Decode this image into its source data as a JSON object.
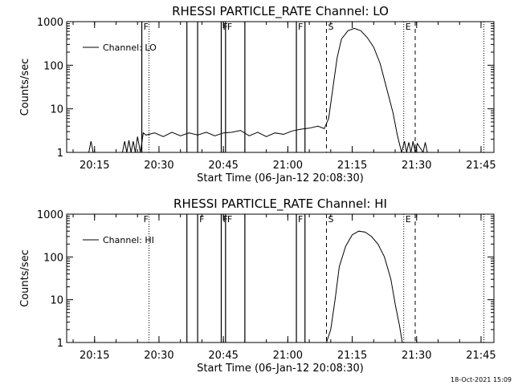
{
  "chart_data": [
    {
      "type": "line",
      "title": "RHESSI PARTICLE_RATE Channel: LO",
      "xlabel": "Start Time (06-Jan-12 20:08:30)",
      "ylabel": "Counts/sec",
      "yscale": "log",
      "ylim": [
        1,
        1000
      ],
      "xlim": [
        "20:08:30",
        "21:48:00"
      ],
      "x_ticks": [
        "20:15",
        "20:30",
        "20:45",
        "21:00",
        "21:15",
        "21:30",
        "21:45"
      ],
      "y_ticks": [
        "1",
        "10",
        "100",
        "1000"
      ],
      "legend": "top-left",
      "series": [
        {
          "name": "Channel: LO",
          "x": [
            "20:08:30",
            "20:13:40",
            "20:14:10",
            "20:14:40",
            "20:21:30",
            "20:22:00",
            "20:22:30",
            "20:23:00",
            "20:23:30",
            "20:24:00",
            "20:24:30",
            "20:25:00",
            "20:25:40",
            "20:26:20",
            "20:27:00",
            "20:29:00",
            "20:31:00",
            "20:33:00",
            "20:35:00",
            "20:37:00",
            "20:39:00",
            "20:41:00",
            "20:43:00",
            "20:45:00",
            "20:47:00",
            "20:49:00",
            "20:51:00",
            "20:53:00",
            "20:55:00",
            "20:57:00",
            "20:59:00",
            "21:01:00",
            "21:03:00",
            "21:05:00",
            "21:07:00",
            "21:08:30",
            "21:09:30",
            "21:10:30",
            "21:11:30",
            "21:12:30",
            "21:14:00",
            "21:15:30",
            "21:17:00",
            "21:18:30",
            "21:20:00",
            "21:21:30",
            "21:23:00",
            "21:24:30",
            "21:25:30",
            "21:26:30",
            "21:27:10",
            "21:27:40",
            "21:28:10",
            "21:28:40",
            "21:29:10",
            "21:29:40",
            "21:30:10",
            "21:31:30",
            "21:32:00",
            "21:32:30",
            "21:33:00",
            "21:48:00"
          ],
          "y": [
            1,
            1,
            1.8,
            1,
            1,
            1.8,
            1,
            1.9,
            1,
            1.8,
            1,
            2.3,
            1,
            2.8,
            2.5,
            2.8,
            2.3,
            2.9,
            2.4,
            2.8,
            2.5,
            2.9,
            2.4,
            2.8,
            2.9,
            3.2,
            2.4,
            2.9,
            2.3,
            2.8,
            2.6,
            3.1,
            3.4,
            3.6,
            4.0,
            3.5,
            6,
            30,
            150,
            400,
            620,
            700,
            620,
            430,
            260,
            110,
            30,
            8,
            2.5,
            1,
            1.8,
            1,
            1.7,
            1,
            1.8,
            1,
            1.6,
            1,
            1.7,
            1,
            1,
            1
          ]
        }
      ],
      "vlines_solid": [
        "20:26:00",
        "20:36:30",
        "20:39:00",
        "20:44:30",
        "20:45:30",
        "20:50:00",
        "21:02:00",
        "21:04:00"
      ],
      "vlines_dashed": [
        "21:09:00",
        "21:29:40"
      ],
      "vlines_dotted": [
        "20:27:40",
        "21:27:00",
        "21:45:40"
      ],
      "markers": [
        {
          "label": "F",
          "x": "20:26:00"
        },
        {
          "label": "F",
          "x": "20:44:30"
        },
        {
          "label": "F",
          "x": "20:45:30"
        },
        {
          "label": "F",
          "x": "21:02:00"
        },
        {
          "label": "S",
          "x": "21:09:00"
        },
        {
          "label": "E",
          "x": "21:27:00"
        }
      ]
    },
    {
      "type": "line",
      "title": "RHESSI PARTICLE_RATE Channel: HI",
      "xlabel": "Start Time (06-Jan-12 20:08:30)",
      "ylabel": "Counts/sec",
      "yscale": "log",
      "ylim": [
        1,
        1000
      ],
      "xlim": [
        "20:08:30",
        "21:48:00"
      ],
      "x_ticks": [
        "20:15",
        "20:30",
        "20:45",
        "21:00",
        "21:15",
        "21:30",
        "21:45"
      ],
      "y_ticks": [
        "1",
        "10",
        "100",
        "1000"
      ],
      "legend": "top-left",
      "series": [
        {
          "name": "Channel: HI",
          "x": [
            "20:08:30",
            "21:08:00",
            "21:09:00",
            "21:10:00",
            "21:11:00",
            "21:12:00",
            "21:13:30",
            "21:15:00",
            "21:16:30",
            "21:18:00",
            "21:19:30",
            "21:21:00",
            "21:22:30",
            "21:24:00",
            "21:25:00",
            "21:26:00",
            "21:26:40",
            "21:48:00"
          ],
          "y": [
            1,
            1,
            1,
            2,
            10,
            60,
            180,
            330,
            400,
            380,
            300,
            200,
            100,
            30,
            8,
            2.5,
            1,
            1
          ]
        }
      ],
      "vlines_solid": [
        "20:36:30",
        "20:39:00",
        "20:44:30",
        "20:45:30",
        "20:50:00",
        "21:02:00",
        "21:04:00"
      ],
      "vlines_dashed": [
        "21:09:00",
        "21:29:40"
      ],
      "vlines_dotted": [
        "20:27:40",
        "21:27:00",
        "21:45:40"
      ],
      "markers": [
        {
          "label": "F",
          "x": "20:26:00"
        },
        {
          "label": "F",
          "x": "20:39:00"
        },
        {
          "label": "F",
          "x": "20:44:30"
        },
        {
          "label": "F",
          "x": "20:45:30"
        },
        {
          "label": "F",
          "x": "21:02:00"
        },
        {
          "label": "S",
          "x": "21:09:00"
        },
        {
          "label": "E",
          "x": "21:27:00"
        }
      ]
    }
  ],
  "footer": {
    "timestamp": "18-Oct-2021 15:09"
  }
}
